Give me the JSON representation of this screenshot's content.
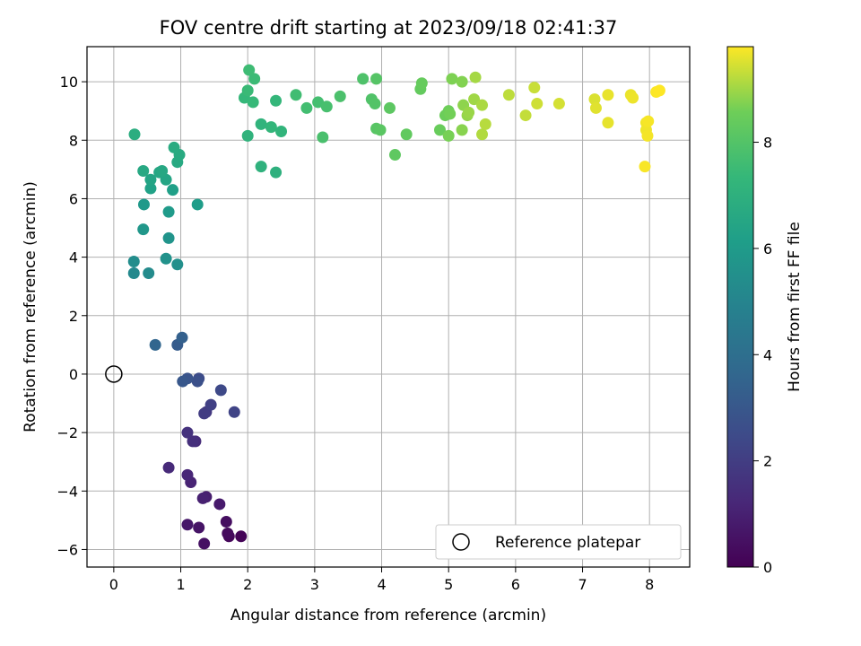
{
  "chart_data": {
    "type": "scatter",
    "title": "FOV centre drift starting at 2023/09/18 02:41:37",
    "xlabel": "Angular distance from reference (arcmin)",
    "ylabel": "Rotation from reference (arcmin)",
    "xlim": [
      -0.4,
      8.6
    ],
    "ylim": [
      -6.6,
      11.2
    ],
    "x_ticks": [
      0,
      1,
      2,
      3,
      4,
      5,
      6,
      7,
      8
    ],
    "y_ticks": [
      -6,
      -4,
      -2,
      0,
      2,
      4,
      6,
      8,
      10
    ],
    "x_tick_labels": [
      "0",
      "1",
      "2",
      "3",
      "4",
      "5",
      "6",
      "7",
      "8"
    ],
    "y_tick_labels": [
      "−6",
      "−4",
      "−2",
      "0",
      "2",
      "4",
      "6",
      "8",
      "10"
    ],
    "grid": true,
    "colorbar": {
      "label": "Hours from first FF file",
      "colormap": "viridis",
      "range": [
        0,
        9.8
      ],
      "ticks": [
        0,
        2,
        4,
        6,
        8
      ],
      "tick_labels": [
        "0",
        "2",
        "4",
        "6",
        "8"
      ]
    },
    "legend": {
      "location": "bottom-right",
      "entries": [
        "Reference platepar"
      ]
    },
    "reference_point": {
      "x": 0,
      "y": 0,
      "label": "Reference platepar"
    },
    "points": [
      [
        1.9,
        -5.55,
        0.1
      ],
      [
        1.72,
        -5.55,
        0.2
      ],
      [
        1.7,
        -5.45,
        0.3
      ],
      [
        1.68,
        -5.05,
        0.4
      ],
      [
        1.35,
        -5.8,
        0.5
      ],
      [
        1.27,
        -5.25,
        0.6
      ],
      [
        1.1,
        -5.15,
        0.7
      ],
      [
        1.58,
        -4.45,
        0.8
      ],
      [
        1.38,
        -4.2,
        0.9
      ],
      [
        1.33,
        -4.25,
        1.0
      ],
      [
        1.15,
        -3.7,
        1.1
      ],
      [
        1.1,
        -3.45,
        1.2
      ],
      [
        0.82,
        -3.2,
        1.3
      ],
      [
        1.22,
        -2.3,
        1.4
      ],
      [
        1.18,
        -2.3,
        1.5
      ],
      [
        1.1,
        -2.0,
        1.6
      ],
      [
        1.38,
        -1.3,
        1.8
      ],
      [
        1.35,
        -1.35,
        1.95
      ],
      [
        1.45,
        -1.05,
        2.1
      ],
      [
        1.8,
        -1.3,
        2.25
      ],
      [
        1.6,
        -0.55,
        2.4
      ],
      [
        1.27,
        -0.15,
        2.55
      ],
      [
        1.25,
        -0.25,
        2.7
      ],
      [
        1.1,
        -0.15,
        2.85
      ],
      [
        1.03,
        -0.25,
        3.0
      ],
      [
        0.95,
        1.0,
        3.2
      ],
      [
        1.02,
        1.25,
        3.4
      ],
      [
        0.62,
        1.0,
        3.6
      ],
      [
        0.3,
        3.45,
        5.2
      ],
      [
        0.52,
        3.45,
        5.3
      ],
      [
        0.3,
        3.85,
        5.4
      ],
      [
        0.95,
        3.75,
        5.5
      ],
      [
        0.78,
        3.95,
        5.6
      ],
      [
        0.82,
        4.65,
        5.7
      ],
      [
        0.44,
        4.95,
        5.8
      ],
      [
        0.45,
        5.8,
        5.9
      ],
      [
        0.82,
        5.55,
        6.0
      ],
      [
        1.25,
        5.8,
        6.1
      ],
      [
        0.88,
        6.3,
        6.2
      ],
      [
        0.55,
        6.35,
        6.3
      ],
      [
        0.55,
        6.65,
        6.4
      ],
      [
        0.78,
        6.65,
        6.45
      ],
      [
        0.68,
        6.9,
        6.5
      ],
      [
        0.72,
        6.95,
        6.55
      ],
      [
        0.44,
        6.95,
        6.6
      ],
      [
        0.95,
        7.25,
        6.65
      ],
      [
        0.98,
        7.5,
        6.7
      ],
      [
        0.9,
        7.75,
        6.75
      ],
      [
        0.31,
        8.2,
        6.85
      ],
      [
        2.42,
        6.9,
        7.0
      ],
      [
        2.2,
        7.1,
        7.05
      ],
      [
        2.0,
        8.15,
        7.1
      ],
      [
        2.2,
        8.55,
        7.15
      ],
      [
        2.5,
        8.3,
        7.2
      ],
      [
        2.35,
        8.45,
        7.25
      ],
      [
        2.42,
        9.35,
        7.3
      ],
      [
        1.95,
        9.45,
        7.35
      ],
      [
        2.08,
        9.3,
        7.4
      ],
      [
        2.0,
        9.7,
        7.45
      ],
      [
        2.1,
        10.1,
        7.5
      ],
      [
        2.02,
        10.4,
        7.55
      ],
      [
        2.72,
        9.55,
        7.6
      ],
      [
        2.88,
        9.1,
        7.65
      ],
      [
        3.05,
        9.3,
        7.7
      ],
      [
        3.18,
        9.15,
        7.75
      ],
      [
        3.12,
        8.1,
        7.8
      ],
      [
        3.38,
        9.5,
        7.85
      ],
      [
        3.72,
        10.1,
        7.9
      ],
      [
        3.85,
        9.4,
        7.95
      ],
      [
        3.9,
        9.25,
        8.0
      ],
      [
        3.92,
        10.1,
        8.05
      ],
      [
        3.92,
        8.4,
        8.1
      ],
      [
        3.98,
        8.35,
        8.15
      ],
      [
        4.12,
        9.1,
        8.2
      ],
      [
        4.2,
        7.5,
        8.25
      ],
      [
        4.37,
        8.2,
        8.3
      ],
      [
        4.58,
        9.75,
        8.35
      ],
      [
        4.6,
        9.95,
        8.4
      ],
      [
        4.87,
        8.35,
        8.45
      ],
      [
        4.95,
        8.85,
        8.5
      ],
      [
        5.0,
        9.0,
        8.55
      ],
      [
        5.02,
        8.9,
        8.6
      ],
      [
        5.0,
        8.15,
        8.65
      ],
      [
        5.05,
        10.1,
        8.7
      ],
      [
        5.2,
        10.0,
        8.75
      ],
      [
        5.2,
        8.35,
        8.8
      ],
      [
        5.22,
        9.2,
        8.85
      ],
      [
        5.28,
        8.85,
        8.9
      ],
      [
        5.3,
        8.95,
        8.95
      ],
      [
        5.38,
        9.4,
        9.0
      ],
      [
        5.4,
        10.15,
        9.05
      ],
      [
        5.5,
        9.2,
        9.1
      ],
      [
        5.5,
        8.2,
        9.15
      ],
      [
        5.55,
        8.55,
        9.2
      ],
      [
        5.9,
        9.55,
        9.25
      ],
      [
        6.15,
        8.85,
        9.3
      ],
      [
        6.28,
        9.8,
        9.35
      ],
      [
        6.32,
        9.25,
        9.4
      ],
      [
        6.65,
        9.25,
        9.45
      ],
      [
        7.18,
        9.4,
        9.5
      ],
      [
        7.2,
        9.1,
        9.55
      ],
      [
        7.38,
        8.6,
        9.6
      ],
      [
        7.38,
        9.55,
        9.62
      ],
      [
        7.72,
        9.55,
        9.64
      ],
      [
        7.75,
        9.45,
        9.66
      ],
      [
        7.95,
        8.35,
        9.68
      ],
      [
        7.95,
        8.6,
        9.7
      ],
      [
        7.97,
        8.15,
        9.72
      ],
      [
        7.98,
        8.65,
        9.74
      ],
      [
        7.93,
        7.1,
        9.76
      ],
      [
        8.1,
        9.65,
        9.78
      ],
      [
        8.15,
        9.7,
        9.8
      ]
    ]
  }
}
